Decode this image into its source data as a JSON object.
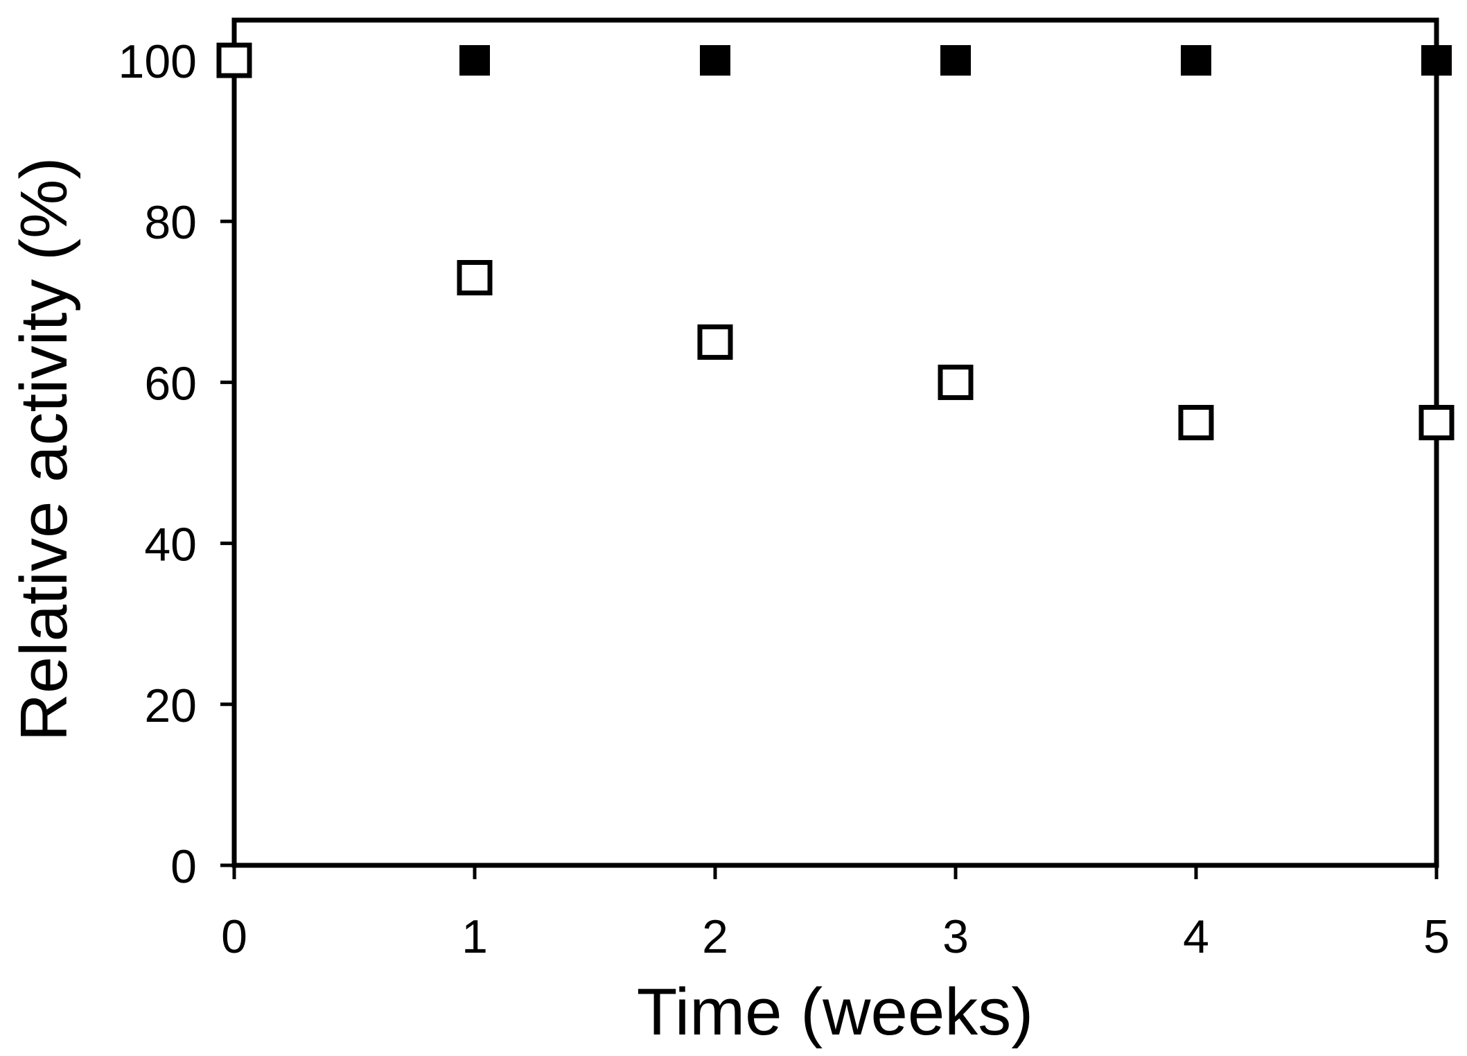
{
  "figure": {
    "background_color": "#ffffff",
    "foreground_color": "#000000"
  },
  "chart_data": {
    "type": "scatter",
    "title": "",
    "xlabel": "Time (weeks)",
    "ylabel": "Relative activity (%)",
    "xlim": [
      0,
      5
    ],
    "ylim": [
      0,
      105
    ],
    "xticks": [
      0,
      1,
      2,
      3,
      4,
      5
    ],
    "yticks": [
      0,
      20,
      40,
      60,
      80,
      100
    ],
    "grid": false,
    "legend_position": "none",
    "frame": "full-box",
    "marker_color": "#000000",
    "plot_background": "#ffffff",
    "series": [
      {
        "name": "filled-squares",
        "marker": "filled-square",
        "x": [
          1,
          2,
          3,
          4,
          5
        ],
        "y": [
          100,
          100,
          100,
          100,
          100
        ]
      },
      {
        "name": "open-squares",
        "marker": "open-square",
        "x": [
          0,
          1,
          2,
          3,
          4,
          5
        ],
        "y": [
          100,
          73,
          65,
          60,
          55,
          55
        ]
      }
    ]
  }
}
